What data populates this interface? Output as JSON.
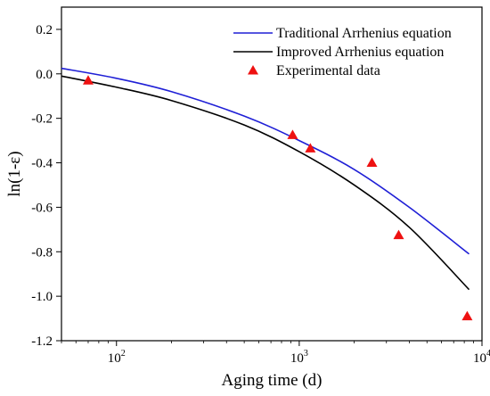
{
  "chart_data": {
    "type": "line",
    "xlabel": "Aging time (d)",
    "ylabel": "ln(1-ε)",
    "x_scale": "log",
    "xlim": [
      50,
      10000
    ],
    "ylim": [
      -1.2,
      0.3
    ],
    "x_ticks": [
      {
        "value": 100,
        "base": "10",
        "exp": "2"
      },
      {
        "value": 1000,
        "base": "10",
        "exp": "3"
      },
      {
        "value": 10000,
        "base": "10",
        "exp": "4"
      }
    ],
    "y_ticks": [
      {
        "value": 0.2,
        "label": "0.2"
      },
      {
        "value": 0.0,
        "label": "0.0"
      },
      {
        "value": -0.2,
        "label": "-0.2"
      },
      {
        "value": -0.4,
        "label": "-0.4"
      },
      {
        "value": -0.6,
        "label": "-0.6"
      },
      {
        "value": -0.8,
        "label": "-0.8"
      },
      {
        "value": -1.0,
        "label": "-1.0"
      },
      {
        "value": -1.2,
        "label": "-1.2"
      }
    ],
    "grid": false,
    "legend_position": "top-right",
    "series": [
      {
        "name": "Traditional Arrhenius equation",
        "kind": "line",
        "color": "#1f1fd6",
        "x": [
          50,
          100,
          200,
          500,
          1000,
          2000,
          4000,
          8500
        ],
        "y": [
          0.025,
          -0.02,
          -0.08,
          -0.19,
          -0.3,
          -0.43,
          -0.6,
          -0.81
        ]
      },
      {
        "name": "Improved Arrhenius equation",
        "kind": "line",
        "color": "#000000",
        "x": [
          50,
          100,
          200,
          500,
          1000,
          2000,
          4000,
          8500
        ],
        "y": [
          -0.01,
          -0.06,
          -0.12,
          -0.23,
          -0.35,
          -0.5,
          -0.69,
          -0.97
        ]
      },
      {
        "name": "Experimental data",
        "kind": "scatter",
        "marker": "triangle",
        "color": "#ee1111",
        "x": [
          70,
          920,
          1150,
          2500,
          3500,
          8300
        ],
        "y": [
          -0.03,
          -0.275,
          -0.335,
          -0.4,
          -0.725,
          -1.09
        ]
      }
    ]
  }
}
